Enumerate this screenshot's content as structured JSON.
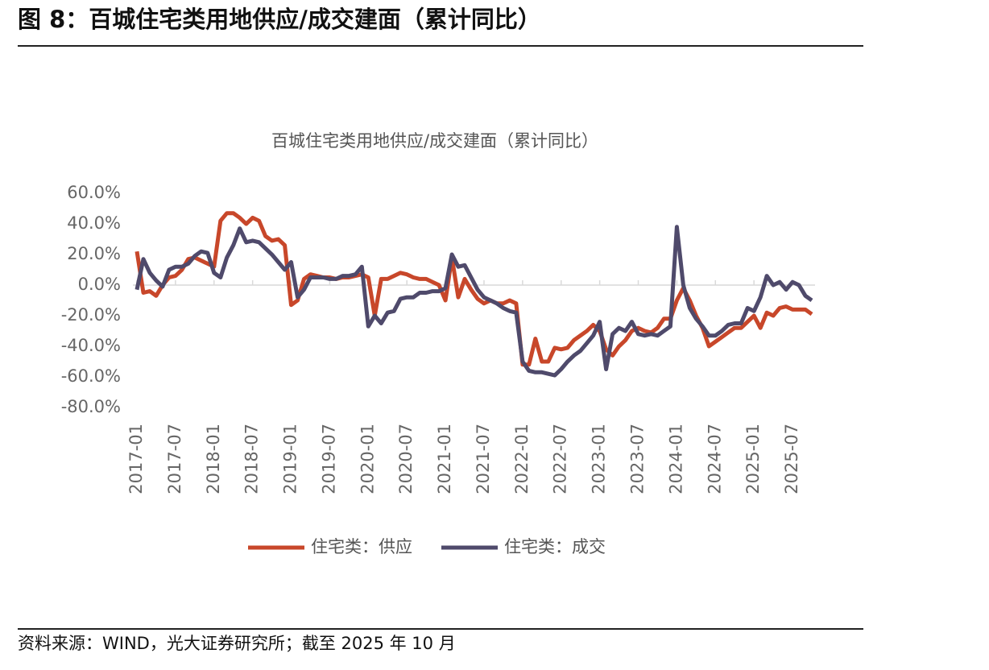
{
  "header": {
    "title": "图 8：百城住宅类用地供应/成交建面（累计同比）"
  },
  "chart_data": {
    "type": "line",
    "title": "百城住宅类用地供应/成交建面（累计同比）",
    "categories": [
      "2017-01",
      null,
      null,
      null,
      null,
      null,
      "2017-07",
      null,
      null,
      null,
      null,
      null,
      "2018-01",
      null,
      null,
      null,
      null,
      null,
      "2018-07",
      null,
      null,
      null,
      null,
      null,
      "2019-01",
      null,
      null,
      null,
      null,
      null,
      "2019-07",
      null,
      null,
      null,
      null,
      null,
      "2020-01",
      null,
      null,
      null,
      null,
      null,
      "2020-07",
      null,
      null,
      null,
      null,
      null,
      "2021-01",
      null,
      null,
      null,
      null,
      null,
      "2021-07",
      null,
      null,
      null,
      null,
      null,
      "2022-01",
      null,
      null,
      null,
      null,
      null,
      "2022-07",
      null,
      null,
      null,
      null,
      null,
      "2023-01",
      null,
      null,
      null,
      null,
      null,
      "2023-07",
      null,
      null,
      null,
      null,
      null,
      "2024-01",
      null,
      null,
      null,
      null,
      null,
      "2024-07",
      null,
      null,
      null,
      null,
      null,
      "2025-01",
      null,
      null,
      null,
      null,
      null,
      "2025-07",
      null,
      null,
      null
    ],
    "series": [
      {
        "name": "住宅类：供应",
        "color": "#c8472a",
        "values": [
          22,
          -5,
          -4,
          -7,
          0,
          5,
          6,
          10,
          17,
          18,
          16,
          14,
          12,
          42,
          47,
          47,
          44,
          40,
          44,
          42,
          32,
          29,
          30,
          26,
          -13,
          -10,
          4,
          7,
          6,
          5,
          5,
          4,
          5,
          5,
          6,
          7,
          5,
          -20,
          4,
          4,
          6,
          8,
          7,
          5,
          4,
          4,
          2,
          0,
          -10,
          18,
          -8,
          4,
          -3,
          -9,
          -12,
          -10,
          -12,
          -12,
          -10,
          -12,
          -52,
          -52,
          -35,
          -50,
          -50,
          -41,
          -42,
          -41,
          -36,
          -33,
          -30,
          -26,
          -30,
          -42,
          -46,
          -40,
          -36,
          -30,
          -28,
          -30,
          -31,
          -28,
          -22,
          -22,
          -10,
          -2,
          -10,
          -20,
          -28,
          -40,
          -37,
          -34,
          -31,
          -28,
          -28,
          -24,
          -20,
          -28,
          -18,
          -20,
          -15,
          -14,
          -16,
          -16,
          -16,
          -19
        ]
      },
      {
        "name": "住宅类：成交",
        "color": "#4f4a6b",
        "values": [
          -3,
          17,
          8,
          3,
          -1,
          10,
          12,
          12,
          14,
          19,
          22,
          21,
          8,
          5,
          18,
          26,
          37,
          28,
          29,
          28,
          24,
          20,
          15,
          10,
          15,
          -8,
          -3,
          5,
          5,
          5,
          4,
          4,
          6,
          6,
          7,
          12,
          -27,
          -20,
          -25,
          -18,
          -17,
          -9,
          -8,
          -8,
          -5,
          -5,
          -4,
          -4,
          -2,
          20,
          12,
          13,
          5,
          -3,
          -8,
          -10,
          -12,
          -15,
          -17,
          -18,
          -50,
          -56,
          -57,
          -57,
          -58,
          -59,
          -55,
          -50,
          -46,
          -43,
          -38,
          -33,
          -24,
          -55,
          -32,
          -28,
          -30,
          -24,
          -32,
          -33,
          -32,
          -33,
          -30,
          -27,
          38,
          0,
          -15,
          -22,
          -27,
          -33,
          -33,
          -30,
          -26,
          -25,
          -25,
          -15,
          -17,
          -8,
          6,
          0,
          2,
          -3,
          2,
          0,
          -7,
          -10
        ]
      }
    ],
    "ylim": [
      -80,
      60
    ],
    "yticks": [
      {
        "value": 60,
        "label": "60.0%"
      },
      {
        "value": 40,
        "label": "40.0%"
      },
      {
        "value": 20,
        "label": "20.0%"
      },
      {
        "value": 0,
        "label": "0.0%"
      },
      {
        "value": -20,
        "label": "-20.0%"
      },
      {
        "value": -40,
        "label": "-40.0%"
      },
      {
        "value": -60,
        "label": "-60.0%"
      },
      {
        "value": -80,
        "label": "-80.0%"
      }
    ],
    "grid": false
  },
  "footer": {
    "source": "资料来源：WIND，光大证券研究所；截至 2025 年 10 月"
  }
}
